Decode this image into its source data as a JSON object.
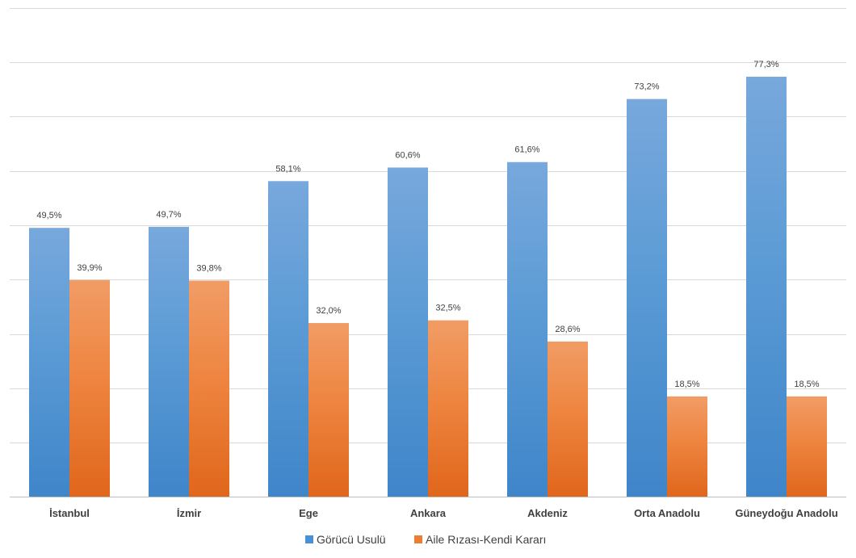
{
  "chart_data": {
    "type": "bar",
    "title": "",
    "xlabel": "",
    "ylabel": "",
    "ylim": [
      0,
      90
    ],
    "grid": true,
    "legend_position": "bottom",
    "categories": [
      "İstanbul",
      "İzmir",
      "Ege",
      "Ankara",
      "Akdeniz",
      "Orta Anadolu",
      "Güneydoğu Anadolu"
    ],
    "series": [
      {
        "name": "Görücü Usulü",
        "color": "#4a90d9",
        "values": [
          49.5,
          49.7,
          58.1,
          60.6,
          61.6,
          73.2,
          77.3
        ],
        "labels": [
          "49,5%",
          "49,7%",
          "58,1%",
          "60,6%",
          "61,6%",
          "73,2%",
          "77,3%"
        ]
      },
      {
        "name": "Aile Rızası-Kendi Kararı",
        "color": "#ed7d31",
        "values": [
          39.9,
          39.8,
          32.0,
          32.5,
          28.6,
          18.5,
          18.5
        ],
        "labels": [
          "39,9%",
          "39,8%",
          "32,0%",
          "32,5%",
          "28,6%",
          "18,5%",
          "18,5%"
        ]
      }
    ]
  }
}
